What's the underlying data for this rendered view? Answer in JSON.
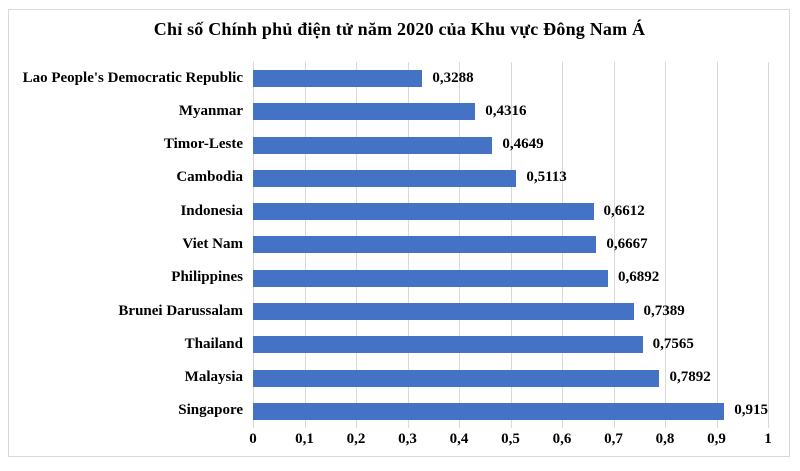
{
  "chart_data": {
    "type": "bar",
    "orientation": "horizontal",
    "title": "Chỉ số Chính phủ điện tử năm 2020 của Khu vực Đông Nam Á",
    "categories": [
      "Lao People's Democratic Republic",
      "Myanmar",
      "Timor-Leste",
      "Cambodia",
      "Indonesia",
      "Viet Nam",
      "Philippines",
      "Brunei Darussalam",
      "Thailand",
      "Malaysia",
      "Singapore"
    ],
    "values": [
      0.3288,
      0.4316,
      0.4649,
      0.5113,
      0.6612,
      0.6667,
      0.6892,
      0.7389,
      0.7565,
      0.7892,
      0.915
    ],
    "value_labels": [
      "0,3288",
      "0,4316",
      "0,4649",
      "0,5113",
      "0,6612",
      "0,6667",
      "0,6892",
      "0,7389",
      "0,7565",
      "0,7892",
      "0,915"
    ],
    "xlabel": "",
    "ylabel": "",
    "xlim": [
      0,
      1
    ],
    "x_ticks": [
      0,
      0.1,
      0.2,
      0.3,
      0.4,
      0.5,
      0.6,
      0.7,
      0.8,
      0.9,
      1
    ],
    "x_tick_labels": [
      "0",
      "0,1",
      "0,2",
      "0,3",
      "0,4",
      "0,5",
      "0,6",
      "0,7",
      "0,8",
      "0,9",
      "1"
    ],
    "grid": "vertical-on",
    "legend": "none",
    "bar_color": "#4472C4",
    "gridline_color": "#D9D9D9",
    "frame_border_color": "#D9D9D9",
    "text_color": "#000000"
  }
}
